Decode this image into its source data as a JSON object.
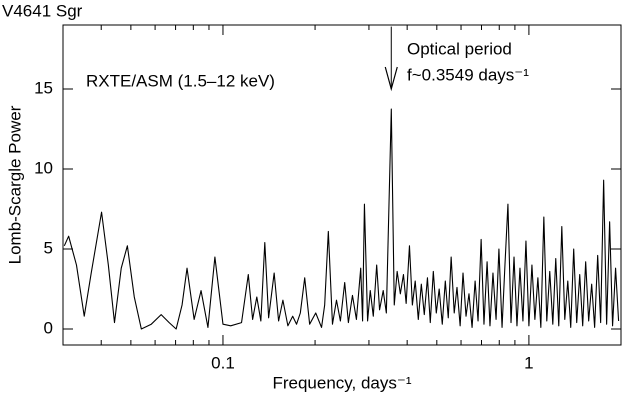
{
  "chart_data": {
    "type": "line",
    "title": "V4641 Sgr",
    "xlabel": "Frequency, days⁻¹",
    "ylabel": "Lomb-Scargle Power",
    "annotations": [
      {
        "text": "RXTE/ASM (1.5–12 keV)"
      },
      {
        "text": "Optical period"
      },
      {
        "text": "f~0.3549 days⁻¹"
      }
    ],
    "arrow": {
      "x": 0.3549,
      "from": 18.9,
      "to": 15
    },
    "xscale": "log",
    "color": "#000000",
    "xlim": [
      0.03,
      2
    ],
    "ylim": [
      -1,
      19
    ],
    "xticks": [
      0.1,
      1
    ],
    "xminorticks": [
      0.04,
      0.05,
      0.06,
      0.07,
      0.08,
      0.09,
      0.2,
      0.3,
      0.4,
      0.5,
      0.6,
      0.7,
      0.8,
      0.9,
      2
    ],
    "yticks": [
      0,
      5,
      10,
      15
    ],
    "x": [
      0.0303,
      0.0313,
      0.0332,
      0.0352,
      0.0371,
      0.0401,
      0.0422,
      0.0442,
      0.0465,
      0.0487,
      0.0513,
      0.0541,
      0.0583,
      0.0628,
      0.0667,
      0.0703,
      0.0735,
      0.0763,
      0.0805,
      0.0848,
      0.0893,
      0.0941,
      0.1,
      0.106,
      0.115,
      0.121,
      0.125,
      0.129,
      0.133,
      0.137,
      0.141,
      0.147,
      0.152,
      0.157,
      0.163,
      0.169,
      0.174,
      0.179,
      0.185,
      0.192,
      0.201,
      0.21,
      0.215,
      0.221,
      0.228,
      0.235,
      0.242,
      0.25,
      0.257,
      0.265,
      0.273,
      0.282,
      0.286,
      0.29,
      0.297,
      0.303,
      0.31,
      0.318,
      0.325,
      0.334,
      0.342,
      0.355,
      0.363,
      0.371,
      0.38,
      0.389,
      0.397,
      0.407,
      0.416,
      0.425,
      0.435,
      0.445,
      0.455,
      0.466,
      0.476,
      0.487,
      0.498,
      0.509,
      0.521,
      0.533,
      0.545,
      0.557,
      0.57,
      0.582,
      0.596,
      0.609,
      0.623,
      0.637,
      0.652,
      0.667,
      0.682,
      0.698,
      0.713,
      0.73,
      0.746,
      0.763,
      0.781,
      0.798,
      0.817,
      0.835,
      0.854,
      0.874,
      0.894,
      0.914,
      0.935,
      0.956,
      0.978,
      1.0,
      1.023,
      1.046,
      1.07,
      1.094,
      1.119,
      1.144,
      1.17,
      1.197,
      1.224,
      1.252,
      1.281,
      1.31,
      1.34,
      1.37,
      1.401,
      1.433,
      1.466,
      1.499,
      1.533,
      1.568,
      1.604,
      1.64,
      1.678,
      1.716,
      1.755,
      1.795,
      1.836,
      1.877,
      1.92,
      1.964
    ],
    "values": [
      5.2,
      5.8,
      4.0,
      0.8,
      3.5,
      7.3,
      4.0,
      0.4,
      3.8,
      5.2,
      2.0,
      0.0,
      0.3,
      0.9,
      0.4,
      0.0,
      1.5,
      3.8,
      0.6,
      2.4,
      0.1,
      4.5,
      0.3,
      0.2,
      0.4,
      3.4,
      0.6,
      2.0,
      0.5,
      5.4,
      0.7,
      3.5,
      0.5,
      1.8,
      0.2,
      0.8,
      0.3,
      1.0,
      3.2,
      0.3,
      1.0,
      0.1,
      1.5,
      6.1,
      0.3,
      1.8,
      0.5,
      2.9,
      0.4,
      2.1,
      0.6,
      3.8,
      0.5,
      7.8,
      0.5,
      2.4,
      0.8,
      4.0,
      1.2,
      2.4,
      1.0,
      13.75,
      1.5,
      3.6,
      2.2,
      3.4,
      1.6,
      5.2,
      1.5,
      3.0,
      0.6,
      2.8,
      0.9,
      3.2,
      0.4,
      3.6,
      1.0,
      2.5,
      0.3,
      3.0,
      0.7,
      4.5,
      1.0,
      2.6,
      0.2,
      3.5,
      0.8,
      2.2,
      0.1,
      3.0,
      0.5,
      5.6,
      0.3,
      4.2,
      0.2,
      3.5,
      0.6,
      5.0,
      0.1,
      4.0,
      7.8,
      0.4,
      4.5,
      0.2,
      3.8,
      0.5,
      5.5,
      0.2,
      4.0,
      0.6,
      3.2,
      0.1,
      7.0,
      0.5,
      3.6,
      0.3,
      4.4,
      0.2,
      6.4,
      0.6,
      3.0,
      0.1,
      5.0,
      0.4,
      3.4,
      0.2,
      4.2,
      0.5,
      2.8,
      0.1,
      4.6,
      0.4,
      9.3,
      0.3,
      6.7,
      0.2,
      3.8,
      0.5
    ]
  }
}
